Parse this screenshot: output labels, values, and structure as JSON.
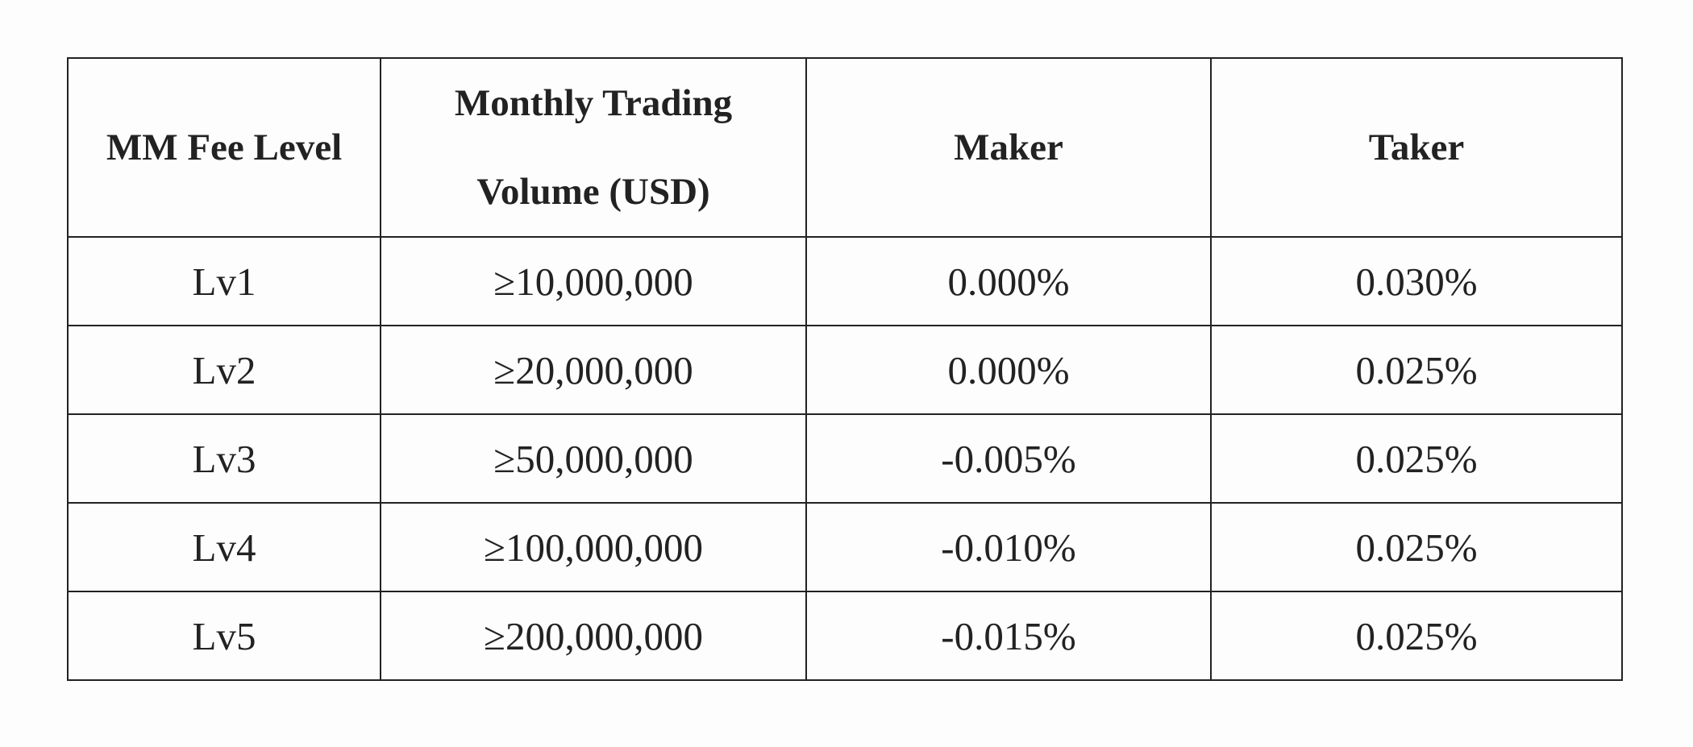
{
  "table": {
    "header": [
      "MM Fee Level",
      "Monthly Trading Volume (USD)",
      "Maker",
      "Taker"
    ],
    "rows": [
      [
        "Lv1",
        "≥10,000,000",
        "0.000%",
        "0.030%"
      ],
      [
        "Lv2",
        "≥20,000,000",
        "0.000%",
        "0.025%"
      ],
      [
        "Lv3",
        "≥50,000,000",
        "-0.005%",
        "0.025%"
      ],
      [
        "Lv4",
        "≥100,000,000",
        "-0.010%",
        "0.025%"
      ],
      [
        "Lv5",
        "≥200,000,000",
        "-0.015%",
        "0.025%"
      ]
    ]
  }
}
